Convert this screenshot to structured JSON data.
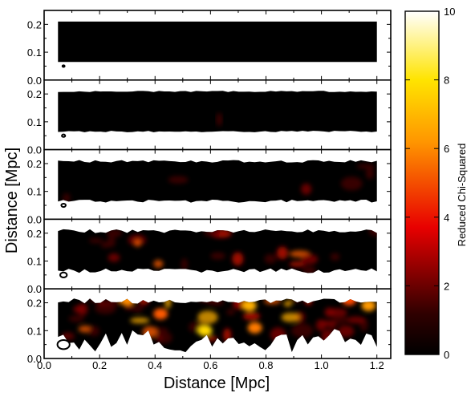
{
  "chart_data": {
    "type": "heatmap",
    "xlabel": "Distance [Mpc]",
    "ylabel": "Distance [Mpc]",
    "xlim": [
      0.0,
      1.25
    ],
    "ylim": [
      0.0,
      0.25
    ],
    "xticks": [
      "0.0",
      "0.2",
      "0.4",
      "0.6",
      "0.8",
      "1.0",
      "1.2"
    ],
    "yticks": [
      "0.0",
      "0.1",
      "0.2"
    ],
    "grid": false,
    "colorbar": {
      "label": "Reduced Chi-Squared",
      "range": [
        0,
        10
      ],
      "ticks": [
        "0",
        "2",
        "4",
        "6",
        "8",
        "10"
      ],
      "colormap": "hot",
      "colors": [
        "#000000",
        "#e80000",
        "#ffc200",
        "#ffffff"
      ]
    },
    "panels": [
      {
        "beam_radius": 0.004,
        "hotspot_level": 0.0
      },
      {
        "beam_radius": 0.006,
        "hotspot_level": 0.02
      },
      {
        "beam_radius": 0.008,
        "hotspot_level": 0.08
      },
      {
        "beam_radius": 0.012,
        "hotspot_level": 0.3
      },
      {
        "beam_radius": 0.022,
        "hotspot_level": 0.7
      }
    ]
  }
}
